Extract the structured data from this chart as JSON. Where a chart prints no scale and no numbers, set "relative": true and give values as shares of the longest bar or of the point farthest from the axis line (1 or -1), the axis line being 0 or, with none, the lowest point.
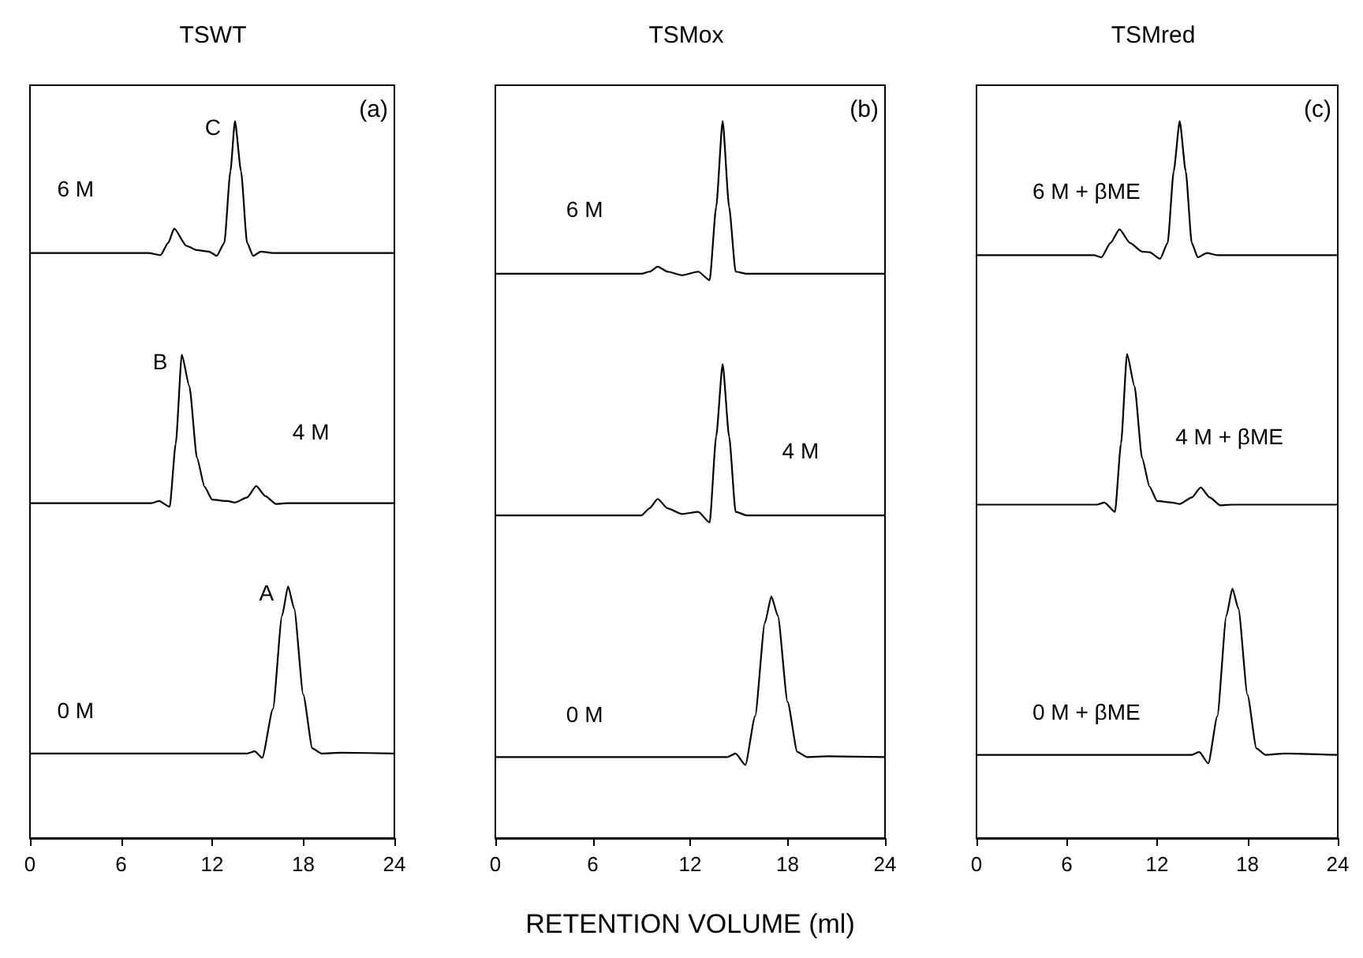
{
  "chart_data": [
    {
      "type": "line",
      "title": "TSWT",
      "relative": true,
      "marker": "none",
      "line_style": "solid",
      "xlim": [
        0,
        24
      ],
      "xticks": [
        0,
        6,
        12,
        18,
        24
      ],
      "annotations": [
        "(a)",
        {
          "text": "C",
          "x": 13.5,
          "y": 1.0
        },
        {
          "text": "B",
          "x": 10,
          "y": 0.674
        },
        {
          "text": "A",
          "x": 17,
          "y": 0.351
        }
      ],
      "series": [
        {
          "name": "6 M",
          "color": "#000000",
          "x": [
            0,
            7.8,
            8.6,
            9.1,
            9.5,
            10.3,
            11,
            11.8,
            12.3,
            12.8,
            13.2,
            13.5,
            13.9,
            14.3,
            14.7,
            15.2,
            16,
            24
          ],
          "values": [
            0.816,
            0.816,
            0.813,
            0.83,
            0.85,
            0.826,
            0.82,
            0.818,
            0.812,
            0.83,
            0.93,
            1.0,
            0.93,
            0.83,
            0.812,
            0.818,
            0.816,
            0.816
          ]
        },
        {
          "name": "4 M",
          "color": "#000000",
          "x": [
            0,
            8,
            8.5,
            9.2,
            9.6,
            10,
            10.5,
            11,
            11.5,
            12,
            13,
            13.5,
            14.3,
            14.9,
            15.5,
            16.2,
            17,
            24
          ],
          "values": [
            0.467,
            0.467,
            0.47,
            0.462,
            0.55,
            0.674,
            0.63,
            0.53,
            0.49,
            0.472,
            0.47,
            0.468,
            0.475,
            0.491,
            0.477,
            0.466,
            0.467,
            0.467
          ]
        },
        {
          "name": "0 M",
          "color": "#000000",
          "x": [
            0,
            14.3,
            14.8,
            15.3,
            16,
            16.6,
            17,
            17.4,
            18,
            18.6,
            19.2,
            20.5,
            24
          ],
          "values": [
            0.118,
            0.118,
            0.121,
            0.112,
            0.18,
            0.31,
            0.351,
            0.32,
            0.2,
            0.125,
            0.118,
            0.119,
            0.118
          ]
        }
      ]
    },
    {
      "type": "line",
      "title": "TSMox",
      "xlabel": "RETENTION VOLUME (ml)",
      "relative": true,
      "marker": "none",
      "line_style": "solid",
      "xlim": [
        0,
        24
      ],
      "xticks": [
        0,
        6,
        12,
        18,
        24
      ],
      "annotations": [
        "(b)"
      ],
      "series": [
        {
          "name": "6 M",
          "color": "#000000",
          "x": [
            0,
            9,
            9.5,
            10,
            10.6,
            11.5,
            12.5,
            13.2,
            13.6,
            14,
            14.4,
            14.8,
            15.5,
            24
          ],
          "values": [
            0.787,
            0.787,
            0.79,
            0.797,
            0.79,
            0.785,
            0.79,
            0.778,
            0.88,
            1.0,
            0.88,
            0.79,
            0.787,
            0.787
          ]
        },
        {
          "name": "4 M",
          "color": "#000000",
          "x": [
            0,
            9,
            9.5,
            10,
            10.6,
            11.5,
            12.5,
            13.2,
            13.6,
            14,
            14.4,
            14.8,
            15.5,
            24
          ],
          "values": [
            0.45,
            0.45,
            0.46,
            0.473,
            0.46,
            0.452,
            0.455,
            0.44,
            0.56,
            0.661,
            0.56,
            0.455,
            0.45,
            0.45
          ]
        },
        {
          "name": "0 M",
          "color": "#000000",
          "x": [
            0,
            14.3,
            14.8,
            15.4,
            16,
            16.6,
            17,
            17.4,
            18,
            18.6,
            19.2,
            20.5,
            24
          ],
          "values": [
            0.113,
            0.113,
            0.118,
            0.102,
            0.17,
            0.3,
            0.337,
            0.31,
            0.19,
            0.12,
            0.113,
            0.114,
            0.113
          ]
        }
      ]
    },
    {
      "type": "line",
      "title": "TSMred",
      "relative": true,
      "marker": "none",
      "line_style": "solid",
      "xlim": [
        0,
        24
      ],
      "xticks": [
        0,
        6,
        12,
        18,
        24
      ],
      "annotations": [
        "(c)"
      ],
      "series": [
        {
          "name": "6 M + βME",
          "color": "#000000",
          "x": [
            0,
            7.8,
            8.3,
            8.9,
            9.5,
            10.2,
            11,
            11.5,
            12.2,
            12.7,
            13.1,
            13.5,
            13.9,
            14.3,
            14.7,
            15.3,
            16,
            24
          ],
          "values": [
            0.813,
            0.813,
            0.81,
            0.83,
            0.849,
            0.83,
            0.818,
            0.817,
            0.808,
            0.83,
            0.93,
            1.0,
            0.93,
            0.83,
            0.81,
            0.816,
            0.813,
            0.813
          ]
        },
        {
          "name": "4 M + βME",
          "color": "#000000",
          "x": [
            0,
            8,
            8.5,
            9.2,
            9.6,
            10,
            10.5,
            11,
            11.5,
            12,
            13,
            13.5,
            14.3,
            14.9,
            15.5,
            16.2,
            17,
            24
          ],
          "values": [
            0.465,
            0.465,
            0.468,
            0.455,
            0.55,
            0.675,
            0.63,
            0.53,
            0.49,
            0.47,
            0.468,
            0.466,
            0.475,
            0.489,
            0.475,
            0.464,
            0.465,
            0.465
          ]
        },
        {
          "name": "0 M + βME",
          "color": "#000000",
          "x": [
            0,
            14.3,
            14.8,
            15.4,
            16,
            16.6,
            17,
            17.4,
            18,
            18.6,
            19.2,
            20.5,
            24
          ],
          "values": [
            0.116,
            0.116,
            0.12,
            0.104,
            0.17,
            0.31,
            0.348,
            0.32,
            0.2,
            0.125,
            0.116,
            0.118,
            0.116
          ]
        }
      ]
    }
  ]
}
